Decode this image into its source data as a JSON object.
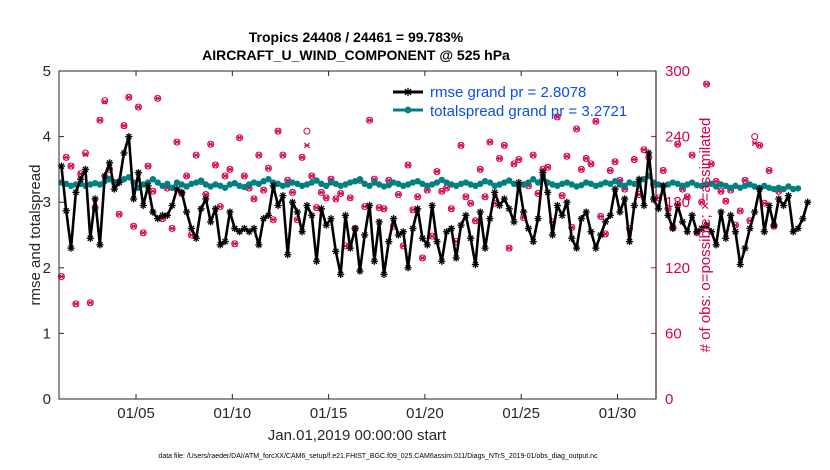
{
  "chart_data": {
    "type": "line",
    "title": "Tropics 24408 / 24461 = 99.783%",
    "subtitle": "AIRCRAFT_U_WIND_COMPONENT @ 525 hPa",
    "xlabel": "Jan.01,2019 00:00:00 start",
    "ylabel": "rmse and totalspread",
    "y2label": "# of obs: o=possible; ×=assimilated",
    "footnote": "data file: /Users/raeder/DAI/ATM_forcXX/CAM6_setup/f.e21.FHIST_BGC.f09_025.CAM6assim.011/Diags_NTrS_2019-01/obs_diag_output.nc",
    "xlim": [
      1,
      32
    ],
    "ylim": [
      0,
      5
    ],
    "y2lim": [
      0,
      300
    ],
    "x_ticks": [
      5,
      10,
      15,
      20,
      25,
      30
    ],
    "x_tick_labels": [
      "01/05",
      "01/10",
      "01/15",
      "01/20",
      "01/25",
      "01/30"
    ],
    "y_ticks": [
      0,
      1,
      2,
      3,
      4,
      5
    ],
    "y_tick_labels": [
      "0",
      "1",
      "2",
      "3",
      "4",
      "5"
    ],
    "y2_ticks": [
      0,
      60,
      120,
      180,
      240,
      300
    ],
    "y2_tick_labels": [
      "0",
      "60",
      "120",
      "180",
      "240",
      "300"
    ],
    "legend_position": "top-right",
    "x_start": 1.125,
    "x_step": 0.25,
    "series": [
      {
        "name": "rmse grand pr = 2.8078",
        "axis": "left",
        "color": "#000000",
        "marker": "star",
        "values": [
          3.55,
          2.87,
          2.3,
          3.15,
          3.35,
          3.5,
          2.45,
          3.05,
          2.35,
          3.4,
          3.6,
          3.2,
          3.3,
          3.75,
          4.0,
          3.05,
          3.45,
          2.95,
          3.25,
          2.85,
          2.75,
          2.8,
          2.8,
          2.95,
          3.2,
          3.15,
          2.85,
          2.6,
          2.45,
          2.9,
          3.05,
          2.7,
          2.9,
          2.35,
          2.4,
          2.85,
          2.6,
          2.55,
          2.6,
          2.55,
          2.6,
          2.35,
          2.75,
          2.8,
          3.25,
          2.95,
          3.1,
          2.2,
          3.0,
          2.85,
          2.55,
          2.95,
          2.8,
          2.1,
          2.9,
          2.65,
          2.75,
          2.25,
          1.9,
          2.8,
          2.3,
          2.6,
          1.95,
          2.5,
          2.95,
          2.1,
          2.7,
          1.9,
          2.4,
          2.75,
          2.5,
          2.55,
          2.0,
          2.6,
          2.9,
          2.45,
          2.35,
          2.95,
          2.4,
          2.1,
          2.55,
          2.6,
          2.15,
          2.65,
          2.8,
          2.45,
          2.05,
          2.85,
          2.3,
          2.75,
          3.15,
          2.95,
          3.05,
          2.9,
          2.7,
          3.3,
          2.85,
          2.6,
          2.4,
          2.75,
          3.45,
          3.15,
          2.5,
          2.95,
          2.8,
          3.0,
          2.45,
          2.3,
          2.75,
          2.85,
          2.55,
          2.3,
          2.5,
          2.7,
          2.8,
          3.2,
          2.85,
          3.05,
          2.4,
          2.95,
          3.35,
          2.95,
          3.75,
          3.05,
          2.9,
          3.25,
          2.8,
          2.6,
          2.95,
          2.7,
          2.55,
          2.8,
          2.55,
          2.6,
          2.65,
          2.55,
          2.35,
          2.85,
          2.45,
          2.8,
          2.55,
          2.05,
          2.3,
          2.6,
          2.85,
          3.2,
          2.55,
          2.95,
          2.65,
          3.05,
          2.95,
          3.1,
          2.55,
          2.6,
          2.75,
          3.0
        ]
      },
      {
        "name": "totalspread grand pr = 3.2721",
        "axis": "left",
        "color": "#008080",
        "marker": "dot",
        "values": [
          3.3,
          3.28,
          3.25,
          3.27,
          3.28,
          3.25,
          3.27,
          3.29,
          3.27,
          3.32,
          3.35,
          3.3,
          3.32,
          3.35,
          3.38,
          3.3,
          3.22,
          3.27,
          3.3,
          3.35,
          3.3,
          3.25,
          3.28,
          3.22,
          3.3,
          3.27,
          3.24,
          3.28,
          3.3,
          3.33,
          3.27,
          3.24,
          3.27,
          3.25,
          3.22,
          3.27,
          3.29,
          3.25,
          3.23,
          3.27,
          3.3,
          3.28,
          3.32,
          3.35,
          3.3,
          3.28,
          3.25,
          3.27,
          3.3,
          3.28,
          3.25,
          3.27,
          3.3,
          3.33,
          3.28,
          3.25,
          3.3,
          3.28,
          3.25,
          3.27,
          3.3,
          3.32,
          3.35,
          3.28,
          3.25,
          3.3,
          3.27,
          3.24,
          3.26,
          3.3,
          3.28,
          3.25,
          3.27,
          3.3,
          3.32,
          3.28,
          3.25,
          3.27,
          3.3,
          3.34,
          3.3,
          3.27,
          3.25,
          3.28,
          3.3,
          3.27,
          3.25,
          3.28,
          3.32,
          3.3,
          3.25,
          3.27,
          3.3,
          3.33,
          3.28,
          3.25,
          3.27,
          3.3,
          3.35,
          3.3,
          3.4,
          3.3,
          3.27,
          3.25,
          3.28,
          3.3,
          3.27,
          3.24,
          3.26,
          3.3,
          3.28,
          3.25,
          3.27,
          3.3,
          3.28,
          3.32,
          3.27,
          3.25,
          3.3,
          3.28,
          3.32,
          3.35,
          3.4,
          3.3,
          3.27,
          3.25,
          3.27,
          3.3,
          3.28,
          3.25,
          3.27,
          3.3,
          3.26,
          3.25,
          3.27,
          3.28,
          3.24,
          3.27,
          3.25,
          3.22,
          3.25,
          3.22,
          3.25,
          3.27,
          3.24,
          3.22,
          3.25,
          3.22,
          3.2,
          3.22,
          3.2,
          3.24,
          3.2,
          3.21
        ]
      },
      {
        "name": "# of obs possible",
        "axis": "right",
        "color": "#d6004f",
        "marker": "circle",
        "values": [
          112,
          221,
          213,
          87,
          206,
          225,
          88,
          175,
          255,
          273,
          210,
          198,
          169,
          250,
          276,
          158,
          267,
          152,
          213,
          190,
          275,
          165,
          193,
          156,
          235,
          188,
          204,
          150,
          223,
          199,
          187,
          233,
          214,
          176,
          204,
          210,
          142,
          239,
          204,
          193,
          183,
          223,
          191,
          211,
          164,
          245,
          223,
          200,
          189,
          164,
          221,
          245,
          204,
          175,
          189,
          184,
          201,
          183,
          188,
          140,
          184,
          156,
          200,
          176,
          255,
          201,
          175,
          174,
          200,
          158,
          187,
          140,
          214,
          173,
          185,
          129,
          191,
          149,
          208,
          190,
          193,
          174,
          144,
          232,
          185,
          179,
          163,
          210,
          185,
          235,
          179,
          220,
          232,
          138,
          215,
          219,
          166,
          195,
          223,
          188,
          210,
          212,
          162,
          258,
          186,
          222,
          157,
          247,
          210,
          220,
          215,
          254,
          167,
          151,
          209,
          217,
          200,
          192,
          156,
          219,
          187,
          228,
          221,
          196,
          184,
          209,
          174,
          157,
          233,
          192,
          185,
          223,
          152,
          180,
          288,
          215,
          199,
          190,
          181,
          191,
          159,
          172,
          200,
          163,
          240,
          232,
          179,
          209,
          158,
          190
        ]
      },
      {
        "name": "# of obs assimilated",
        "axis": "right",
        "color": "#d6004f",
        "marker": "x",
        "values": [
          112,
          221,
          213,
          87,
          206,
          224,
          88,
          175,
          255,
          272,
          210,
          198,
          169,
          250,
          276,
          158,
          267,
          152,
          213,
          190,
          275,
          165,
          193,
          156,
          235,
          188,
          204,
          150,
          223,
          199,
          187,
          233,
          214,
          176,
          204,
          210,
          142,
          239,
          204,
          193,
          183,
          223,
          191,
          211,
          164,
          245,
          223,
          200,
          189,
          164,
          221,
          232,
          204,
          175,
          189,
          184,
          201,
          183,
          188,
          140,
          184,
          156,
          200,
          176,
          255,
          201,
          175,
          174,
          200,
          158,
          187,
          140,
          214,
          173,
          185,
          129,
          191,
          149,
          208,
          190,
          193,
          174,
          144,
          232,
          185,
          179,
          163,
          210,
          185,
          235,
          179,
          220,
          232,
          138,
          215,
          219,
          166,
          195,
          223,
          188,
          210,
          212,
          162,
          258,
          186,
          222,
          157,
          247,
          210,
          220,
          215,
          254,
          167,
          151,
          209,
          217,
          200,
          192,
          156,
          219,
          187,
          228,
          221,
          196,
          184,
          209,
          174,
          157,
          233,
          192,
          185,
          223,
          152,
          180,
          288,
          215,
          199,
          190,
          181,
          191,
          159,
          172,
          200,
          163,
          234,
          232,
          179,
          209,
          158,
          190
        ]
      }
    ]
  }
}
